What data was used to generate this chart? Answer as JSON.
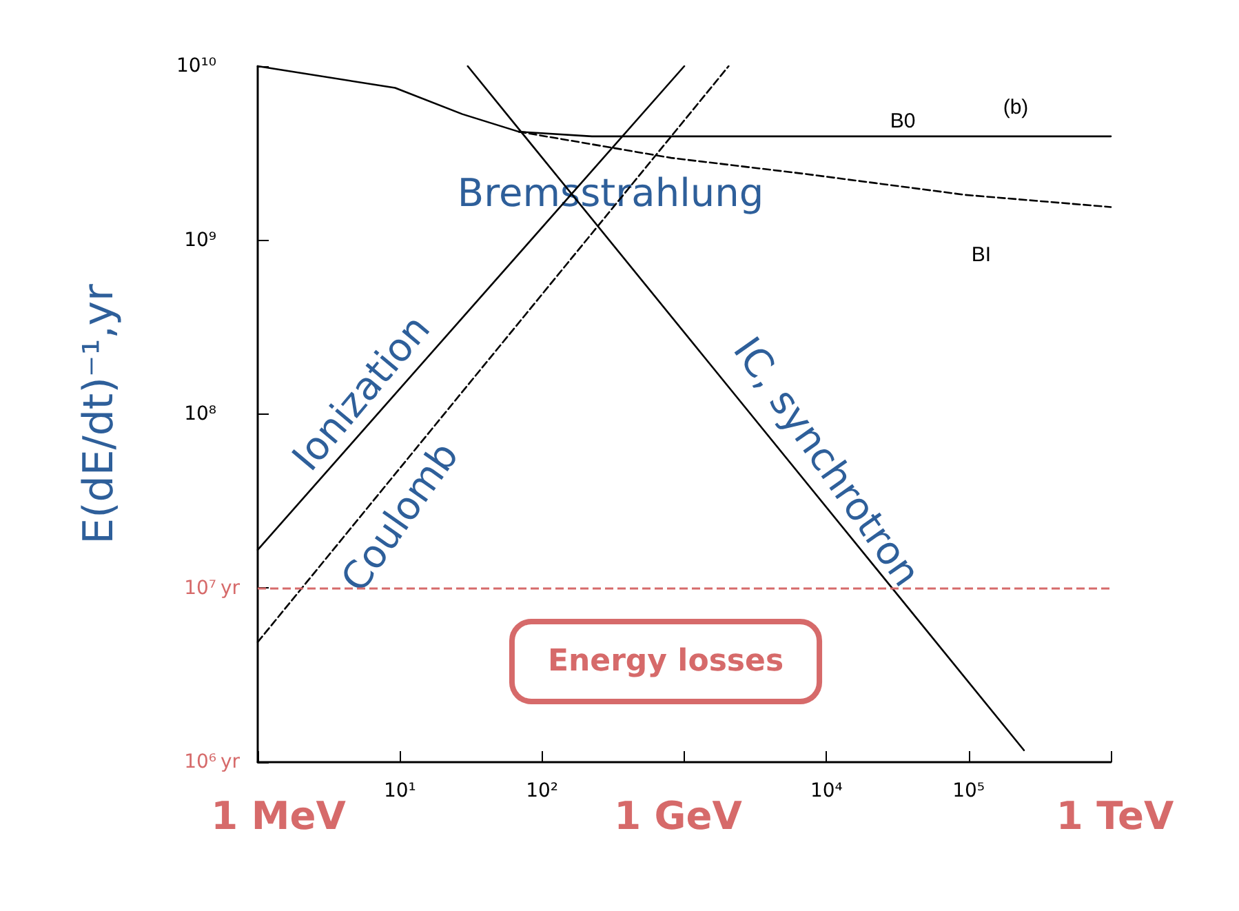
{
  "chart_data": {
    "type": "line",
    "ylabel": "E(dE/dt)⁻¹,yr",
    "log": "xy",
    "marker": "none",
    "xlim": [
      1,
      1000000
    ],
    "ylim": [
      1000000,
      10000000000
    ],
    "xticks": [
      {
        "value": 1,
        "label": null
      },
      {
        "value": 10,
        "label": "10¹"
      },
      {
        "value": 100,
        "label": "10²"
      },
      {
        "value": 1000,
        "label": null
      },
      {
        "value": 10000,
        "label": "10⁴"
      },
      {
        "value": 100000,
        "label": "10⁵"
      },
      {
        "value": 1000000,
        "label": null
      }
    ],
    "yticks": [
      {
        "value": 1000000,
        "label": "10⁶"
      },
      {
        "value": 10000000,
        "label": "10⁷"
      },
      {
        "value": 100000000,
        "label": "10⁸"
      },
      {
        "value": 1000000000,
        "label": "10⁹"
      },
      {
        "value": 10000000000,
        "label": "10¹⁰"
      }
    ],
    "series": [
      {
        "color": "#000000",
        "line_style": "solid",
        "x": [
          1,
          1000
        ],
        "values": [
          16600000,
          10000000000
        ]
      },
      {
        "color": "#000000",
        "line_style": "dashed",
        "x": [
          1,
          2050
        ],
        "values": [
          4900000,
          10000000000
        ]
      },
      {
        "color": "#000000",
        "line_style": "solid",
        "x": [
          30,
          245000
        ],
        "values": [
          10000000000,
          1170000
        ]
      },
      {
        "color": "#000000",
        "line_style": "solid",
        "x": [
          1,
          9.25,
          27.5,
          68.5,
          224,
          1000000
        ],
        "values": [
          10000000000,
          7500000000,
          5300000000,
          4200000000,
          3950000000,
          3950000000
        ]
      },
      {
        "color": "#000000",
        "line_style": "dashed",
        "x": [
          68.5,
          810,
          7160,
          95000,
          1000000
        ],
        "values": [
          4200000000,
          2970000000,
          2400000000,
          1820000000,
          1550000000
        ]
      }
    ],
    "ref_lines": [
      {
        "axis": "y",
        "value": 10000000,
        "color": "#d66a6a",
        "line_style": "dashed"
      }
    ],
    "annotations": [
      "B0",
      "(b)",
      "BI",
      "Bremsstrahlung",
      "Ionization",
      "Coulomb",
      "IC, synchrotron",
      "Energy losses",
      "1 MeV",
      "1 GeV",
      "1 TeV",
      "yr",
      "yr"
    ]
  }
}
